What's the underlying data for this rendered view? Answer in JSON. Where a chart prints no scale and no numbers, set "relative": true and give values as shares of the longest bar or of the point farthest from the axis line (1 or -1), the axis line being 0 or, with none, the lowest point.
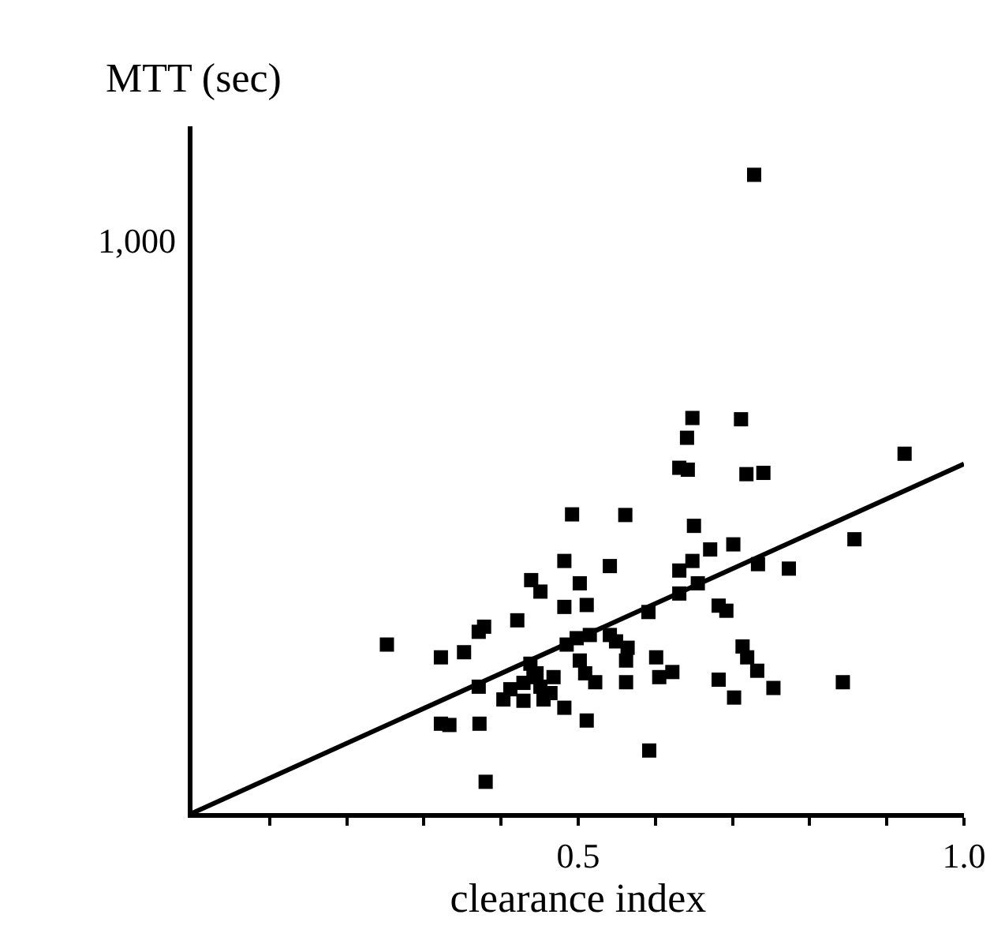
{
  "chart_data": {
    "type": "scatter",
    "xlabel": "clearance index",
    "ylabel": "MTT (sec)",
    "relative": true,
    "xlim": [
      0,
      1.0
    ],
    "annotations": [
      "1,000"
    ],
    "xticks": [
      {
        "value": 0.1,
        "label": null
      },
      {
        "value": 0.2,
        "label": null
      },
      {
        "value": 0.3,
        "label": null
      },
      {
        "value": 0.4,
        "label": null
      },
      {
        "value": 0.5,
        "label": "0.5"
      },
      {
        "value": 0.6,
        "label": null
      },
      {
        "value": 0.7,
        "label": null
      },
      {
        "value": 0.8,
        "label": null
      },
      {
        "value": 0.9,
        "label": null
      },
      {
        "value": 1.0,
        "label": "1.0"
      }
    ],
    "marker": "square",
    "series": [
      {
        "color": "#000000",
        "x": [
          0.728,
          0.923,
          0.648,
          0.711,
          0.641,
          0.631,
          0.642,
          0.718,
          0.74,
          0.492,
          0.561,
          0.65,
          0.858,
          0.671,
          0.701,
          0.482,
          0.541,
          0.733,
          0.773,
          0.631,
          0.648,
          0.439,
          0.451,
          0.502,
          0.655,
          0.482,
          0.511,
          0.631,
          0.682,
          0.692,
          0.421,
          0.591,
          0.378,
          0.371,
          0.252,
          0.322,
          0.352,
          0.498,
          0.515,
          0.541,
          0.549,
          0.564,
          0.485,
          0.713,
          0.601,
          0.719,
          0.732,
          0.622,
          0.605,
          0.562,
          0.562,
          0.502,
          0.509,
          0.522,
          0.682,
          0.702,
          0.753,
          0.843,
          0.371,
          0.438,
          0.446,
          0.429,
          0.451,
          0.412,
          0.464,
          0.403,
          0.429,
          0.455,
          0.482,
          0.322,
          0.333,
          0.372,
          0.511,
          0.592,
          0.38,
          0.442,
          0.468
        ],
        "values": [
          1.0,
          0.563,
          0.619,
          0.617,
          0.588,
          0.541,
          0.538,
          0.531,
          0.533,
          0.468,
          0.467,
          0.45,
          0.429,
          0.413,
          0.421,
          0.395,
          0.387,
          0.39,
          0.383,
          0.38,
          0.395,
          0.365,
          0.347,
          0.36,
          0.36,
          0.323,
          0.326,
          0.344,
          0.325,
          0.317,
          0.302,
          0.315,
          0.292,
          0.284,
          0.264,
          0.244,
          0.252,
          0.274,
          0.279,
          0.279,
          0.269,
          0.259,
          0.264,
          0.261,
          0.244,
          0.244,
          0.223,
          0.221,
          0.213,
          0.239,
          0.205,
          0.239,
          0.219,
          0.205,
          0.209,
          0.181,
          0.196,
          0.205,
          0.198,
          0.234,
          0.219,
          0.204,
          0.198,
          0.194,
          0.188,
          0.178,
          0.176,
          0.178,
          0.165,
          0.14,
          0.138,
          0.14,
          0.145,
          0.098,
          0.049,
          0.213,
          0.213
        ]
      },
      {
        "type": "line",
        "color": "#000000",
        "line_style": "solid",
        "marker": "none",
        "x": [
          0,
          1.0
        ],
        "values": [
          0,
          0.547
        ]
      }
    ]
  }
}
